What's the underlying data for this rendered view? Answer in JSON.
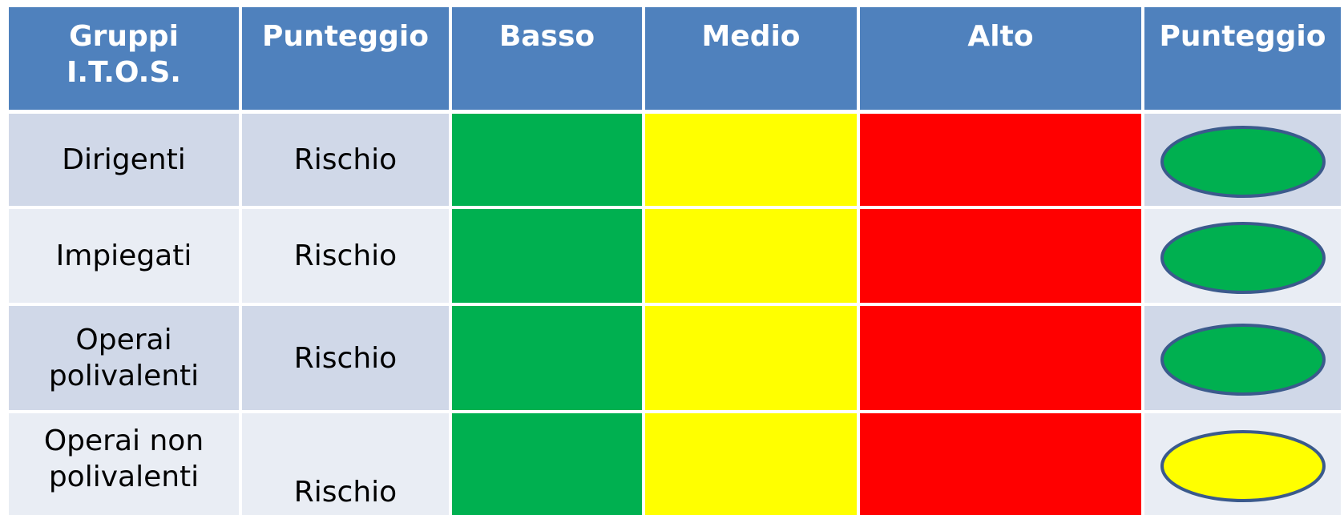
{
  "table": {
    "header": [
      [
        "Gruppi",
        "I.T.O.S."
      ],
      [
        "Punteggio"
      ],
      [
        "Basso"
      ],
      [
        "Medio"
      ],
      [
        "Alto"
      ],
      [
        "Punteggio"
      ]
    ],
    "rows": [
      {
        "group": [
          "Dirigenti"
        ],
        "score": "Rischio",
        "score_color": "#00b050"
      },
      {
        "group": [
          "Impiegati"
        ],
        "score": "Rischio",
        "score_color": "#00b050"
      },
      {
        "group": [
          "Operai",
          "polivalenti"
        ],
        "score": "Rischio",
        "score_color": "#00b050"
      },
      {
        "group": [
          "Operai non",
          "polivalenti"
        ],
        "score": "Rischio",
        "score_color": "#ffff00"
      }
    ]
  }
}
